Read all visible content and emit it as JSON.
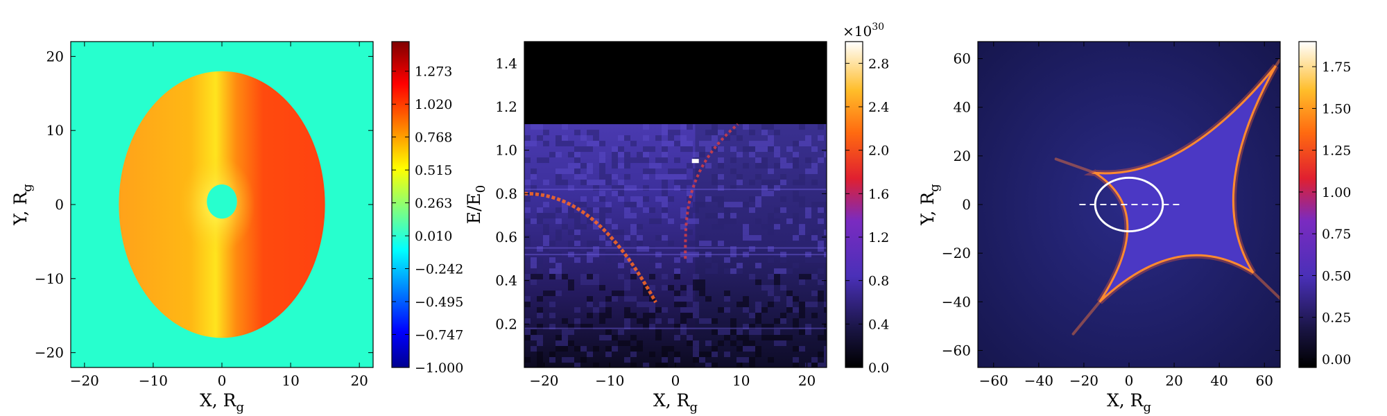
{
  "chart_data": [
    {
      "type": "heatmap",
      "title": "",
      "xlabel": "X, R",
      "xlabel_sub": "g",
      "ylabel": "Y, R",
      "ylabel_sub": "g",
      "xlim": [
        -22,
        22
      ],
      "ylim": [
        -22,
        22
      ],
      "xticks": [
        -20,
        -10,
        0,
        10,
        20
      ],
      "yticks": [
        -20,
        -10,
        0,
        10,
        20
      ],
      "colorbar": {
        "ticks": [
          "1.273",
          "1.020",
          "0.768",
          "0.515",
          "0.263",
          "0.010",
          "−0.242",
          "−0.495",
          "−0.747",
          "−1.000"
        ],
        "tick_values": [
          1.273,
          1.02,
          0.768,
          0.515,
          0.263,
          0.01,
          -0.242,
          -0.495,
          -0.747,
          -1.0
        ],
        "range": [
          -1.0,
          1.5
        ],
        "colormap": "jet"
      },
      "background_value": 0.1,
      "disk": {
        "outer_radius": 15,
        "inner_radius": 2.2,
        "value_left": 0.6,
        "value_right": 1.13
      }
    },
    {
      "type": "heatmap",
      "title": "",
      "xlabel": "X, R",
      "xlabel_sub": "g",
      "ylabel": "E/E",
      "ylabel_sub": "0",
      "xlim": [
        -23,
        23
      ],
      "ylim": [
        0,
        1.5
      ],
      "xticks": [
        -20,
        -10,
        0,
        10,
        20
      ],
      "yticks": [
        0.2,
        0.4,
        0.6,
        0.8,
        1.0,
        1.2,
        1.4
      ],
      "ytick_labels": [
        "0.2",
        "0.4",
        "0.6",
        "0.8",
        "1.0",
        "1.2",
        "1.4"
      ],
      "cutoff_energy": 1.12,
      "colorbar": {
        "ticks": [
          "2.8",
          "2.4",
          "2.0",
          "1.6",
          "1.2",
          "0.8",
          "0.4",
          "0.0"
        ],
        "tick_values": [
          2.8,
          2.4,
          2.0,
          1.6,
          1.2,
          0.8,
          0.4,
          0.0
        ],
        "range": [
          0,
          3.0
        ],
        "multiplier": "×10",
        "multiplier_exp": "30",
        "colormap": "cubehelix-fire"
      }
    },
    {
      "type": "heatmap",
      "title": "",
      "xlabel": "X, R",
      "xlabel_sub": "g",
      "ylabel": "Y, R",
      "ylabel_sub": "g",
      "xlim": [
        -67,
        67
      ],
      "ylim": [
        -67,
        67
      ],
      "xticks": [
        -60,
        -40,
        -20,
        0,
        20,
        40,
        60
      ],
      "yticks": [
        -60,
        -40,
        -20,
        0,
        20,
        40,
        60
      ],
      "caustic_vertices": [
        [
          -15,
          13
        ],
        [
          65,
          57
        ],
        [
          55,
          -28
        ],
        [
          -13,
          -40
        ]
      ],
      "source_ellipse": {
        "cx": 0,
        "cy": 0,
        "rx": 15,
        "ry": 11
      },
      "dashed_line": {
        "x0": -22,
        "x1": 23,
        "y": 0
      },
      "colorbar": {
        "ticks": [
          "1.75",
          "1.50",
          "1.25",
          "1.00",
          "0.75",
          "0.50",
          "0.25",
          "0.00"
        ],
        "tick_values": [
          1.75,
          1.5,
          1.25,
          1.0,
          0.75,
          0.5,
          0.25,
          0.0
        ],
        "range": [
          -0.05,
          1.9
        ],
        "colormap": "cubehelix-fire"
      }
    }
  ]
}
